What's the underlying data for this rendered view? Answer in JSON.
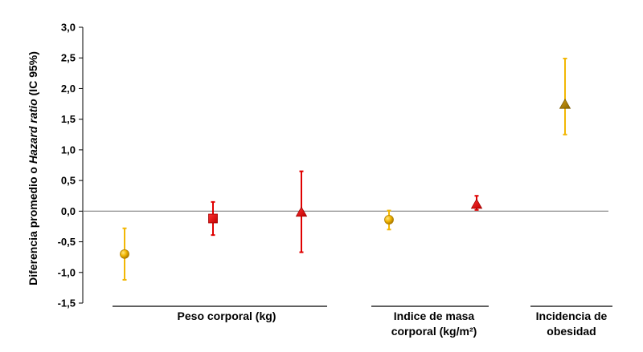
{
  "chart_data": {
    "type": "scatter",
    "subtype": "error-bar-forest",
    "title": "",
    "ylabel": {
      "prefix": "Diferencia promedio o ",
      "italic": "Hazard ratio",
      "suffix": " (IC 95%)"
    },
    "ylim": [
      -1.5,
      3.0
    ],
    "yticks": [
      "-1,5",
      "-1,0",
      "-0,5",
      "0,0",
      "0,5",
      "1,0",
      "1,5",
      "2,0",
      "2,5",
      "3,0"
    ],
    "reference_line": 0.0,
    "grid": false,
    "legend": "none",
    "groups": [
      {
        "label_lines": [
          "Peso corporal (kg)"
        ]
      },
      {
        "label_lines": [
          "Indice de masa",
          "corporal (kg/m²)"
        ]
      },
      {
        "label_lines": [
          "Incidencia de",
          "obesidad"
        ]
      }
    ],
    "colors": {
      "gold": "#F2B705",
      "gold_marker": "#E6A800",
      "gold_marker_dark": "#B07E00",
      "red": "#E00000",
      "olive_marker": "#A67C00",
      "axis": "#000000",
      "refline": "#7F7F7F"
    },
    "points": [
      {
        "group": 0,
        "marker": "circle",
        "color": "gold",
        "value": -0.7,
        "lower": -1.12,
        "upper": -0.28
      },
      {
        "group": 0,
        "marker": "square",
        "color": "red",
        "value": -0.12,
        "lower": -0.39,
        "upper": 0.15
      },
      {
        "group": 0,
        "marker": "triangle",
        "color": "red",
        "value": -0.02,
        "lower": -0.67,
        "upper": 0.65
      },
      {
        "group": 1,
        "marker": "circle",
        "color": "gold",
        "value": -0.14,
        "lower": -0.3,
        "upper": 0.01
      },
      {
        "group": 1,
        "marker": "triangle",
        "color": "red",
        "value": 0.11,
        "lower": 0.02,
        "upper": 0.25
      },
      {
        "group": 2,
        "marker": "triangle",
        "color": "gold",
        "fill": "olive",
        "value": 1.74,
        "lower": 1.25,
        "upper": 2.49
      }
    ]
  }
}
